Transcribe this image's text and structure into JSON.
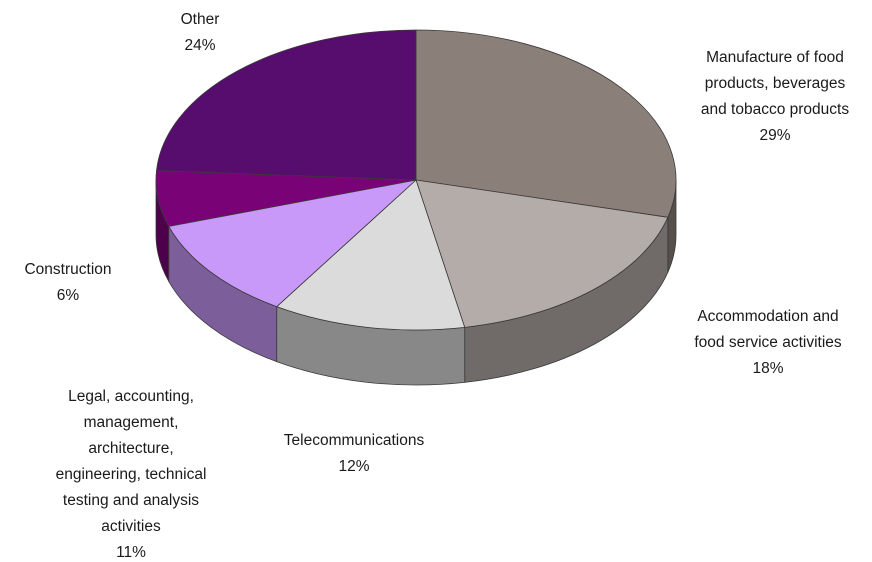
{
  "chart_data": {
    "type": "pie",
    "title": "",
    "legend": "none",
    "style": "3d",
    "slices": [
      {
        "label": "Manufacture of food products, beverages and tobacco products",
        "label_lines": [
          "Manufacture of food",
          "products, beverages",
          "and tobacco products"
        ],
        "value": 29,
        "value_label": "29%",
        "color": "#8b7f79"
      },
      {
        "label": "Accommodation and food service activities",
        "label_lines": [
          "Accommodation and",
          "food service activities"
        ],
        "value": 18,
        "value_label": "18%",
        "color": "#b4aca8"
      },
      {
        "label": "Telecommunications",
        "label_lines": [
          "Telecommunications"
        ],
        "value": 12,
        "value_label": "12%",
        "color": "#dbdbdb"
      },
      {
        "label": "Legal, accounting, management, architecture, engineering, technical testing and analysis activities",
        "label_lines": [
          "Legal, accounting,",
          "management,",
          "architecture,",
          "engineering, technical",
          "testing and analysis",
          "activities"
        ],
        "value": 11,
        "value_label": "11%",
        "color": "#c899f9"
      },
      {
        "label": "Construction",
        "label_lines": [
          "Construction"
        ],
        "value": 6,
        "value_label": "6%",
        "color": "#7a0277"
      },
      {
        "label": "Other",
        "label_lines": [
          "Other"
        ],
        "value": 24,
        "value_label": "24%",
        "color": "#560d6d"
      }
    ]
  }
}
